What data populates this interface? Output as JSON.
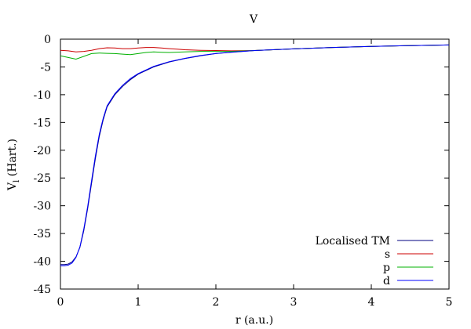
{
  "chart_data": {
    "type": "line",
    "title": "V",
    "xlabel": "r (a.u.)",
    "ylabel": "V",
    "ylabel_sub": "l",
    "ylabel_suffix": " (Hart.)",
    "xlim": [
      0,
      5
    ],
    "ylim": [
      -45,
      0
    ],
    "xticks": [
      0,
      1,
      2,
      3,
      4,
      5
    ],
    "yticks": [
      0,
      -5,
      -10,
      -15,
      -20,
      -25,
      -30,
      -35,
      -40,
      -45
    ],
    "grid": false,
    "legend_position": "bottom-right",
    "series": [
      {
        "name": "Localised TM",
        "color": "#000080",
        "points": [
          [
            0.0,
            -40.6
          ],
          [
            0.05,
            -40.6
          ],
          [
            0.1,
            -40.5
          ],
          [
            0.15,
            -40.1
          ],
          [
            0.2,
            -39.2
          ],
          [
            0.25,
            -37.5
          ],
          [
            0.3,
            -34.5
          ],
          [
            0.35,
            -30.5
          ],
          [
            0.4,
            -26.0
          ],
          [
            0.45,
            -21.5
          ],
          [
            0.5,
            -17.5
          ],
          [
            0.55,
            -14.5
          ],
          [
            0.6,
            -12.2
          ],
          [
            0.7,
            -10.0
          ],
          [
            0.8,
            -8.5
          ],
          [
            0.9,
            -7.3
          ],
          [
            1.0,
            -6.3
          ],
          [
            1.2,
            -5.0
          ],
          [
            1.4,
            -4.1
          ],
          [
            1.6,
            -3.5
          ],
          [
            1.8,
            -3.0
          ],
          [
            2.0,
            -2.6
          ],
          [
            2.2,
            -2.35
          ],
          [
            2.5,
            -2.05
          ],
          [
            3.0,
            -1.75
          ],
          [
            3.5,
            -1.5
          ],
          [
            4.0,
            -1.3
          ],
          [
            4.5,
            -1.15
          ],
          [
            5.0,
            -1.05
          ]
        ]
      },
      {
        "name": "s",
        "color": "#cc0000",
        "points": [
          [
            0.0,
            -2.0
          ],
          [
            0.1,
            -2.1
          ],
          [
            0.2,
            -2.3
          ],
          [
            0.3,
            -2.2
          ],
          [
            0.4,
            -2.0
          ],
          [
            0.5,
            -1.7
          ],
          [
            0.6,
            -1.55
          ],
          [
            0.7,
            -1.6
          ],
          [
            0.8,
            -1.7
          ],
          [
            0.9,
            -1.7
          ],
          [
            1.0,
            -1.6
          ],
          [
            1.1,
            -1.5
          ],
          [
            1.2,
            -1.5
          ],
          [
            1.3,
            -1.6
          ],
          [
            1.4,
            -1.7
          ],
          [
            1.5,
            -1.8
          ],
          [
            1.6,
            -1.9
          ],
          [
            1.8,
            -2.0
          ],
          [
            2.0,
            -2.05
          ],
          [
            2.2,
            -2.1
          ],
          [
            2.5,
            -2.05
          ],
          [
            3.0,
            -1.75
          ],
          [
            3.5,
            -1.5
          ],
          [
            4.0,
            -1.3
          ],
          [
            4.5,
            -1.15
          ],
          [
            5.0,
            -1.05
          ]
        ]
      },
      {
        "name": "p",
        "color": "#00b000",
        "points": [
          [
            0.0,
            -3.0
          ],
          [
            0.1,
            -3.3
          ],
          [
            0.2,
            -3.6
          ],
          [
            0.3,
            -3.1
          ],
          [
            0.4,
            -2.6
          ],
          [
            0.5,
            -2.5
          ],
          [
            0.6,
            -2.55
          ],
          [
            0.7,
            -2.6
          ],
          [
            0.8,
            -2.7
          ],
          [
            0.9,
            -2.8
          ],
          [
            1.0,
            -2.6
          ],
          [
            1.1,
            -2.4
          ],
          [
            1.2,
            -2.3
          ],
          [
            1.3,
            -2.35
          ],
          [
            1.4,
            -2.4
          ],
          [
            1.6,
            -2.3
          ],
          [
            1.8,
            -2.2
          ],
          [
            2.0,
            -2.2
          ],
          [
            2.2,
            -2.2
          ],
          [
            2.5,
            -2.05
          ],
          [
            3.0,
            -1.75
          ],
          [
            3.5,
            -1.5
          ],
          [
            4.0,
            -1.3
          ],
          [
            4.5,
            -1.15
          ],
          [
            5.0,
            -1.05
          ]
        ]
      },
      {
        "name": "d",
        "color": "#0000ff",
        "points": [
          [
            0.0,
            -40.8
          ],
          [
            0.05,
            -40.8
          ],
          [
            0.1,
            -40.7
          ],
          [
            0.15,
            -40.3
          ],
          [
            0.2,
            -39.3
          ],
          [
            0.25,
            -37.4
          ],
          [
            0.3,
            -34.2
          ],
          [
            0.35,
            -30.1
          ],
          [
            0.4,
            -25.5
          ],
          [
            0.45,
            -21.0
          ],
          [
            0.5,
            -17.1
          ],
          [
            0.55,
            -14.2
          ],
          [
            0.6,
            -12.0
          ],
          [
            0.7,
            -9.8
          ],
          [
            0.8,
            -8.3
          ],
          [
            0.9,
            -7.1
          ],
          [
            1.0,
            -6.2
          ],
          [
            1.2,
            -4.9
          ],
          [
            1.4,
            -4.05
          ],
          [
            1.6,
            -3.45
          ],
          [
            1.8,
            -2.95
          ],
          [
            2.0,
            -2.58
          ],
          [
            2.2,
            -2.33
          ],
          [
            2.5,
            -2.04
          ],
          [
            3.0,
            -1.75
          ],
          [
            3.5,
            -1.5
          ],
          [
            4.0,
            -1.3
          ],
          [
            4.5,
            -1.15
          ],
          [
            5.0,
            -1.05
          ]
        ]
      }
    ]
  }
}
